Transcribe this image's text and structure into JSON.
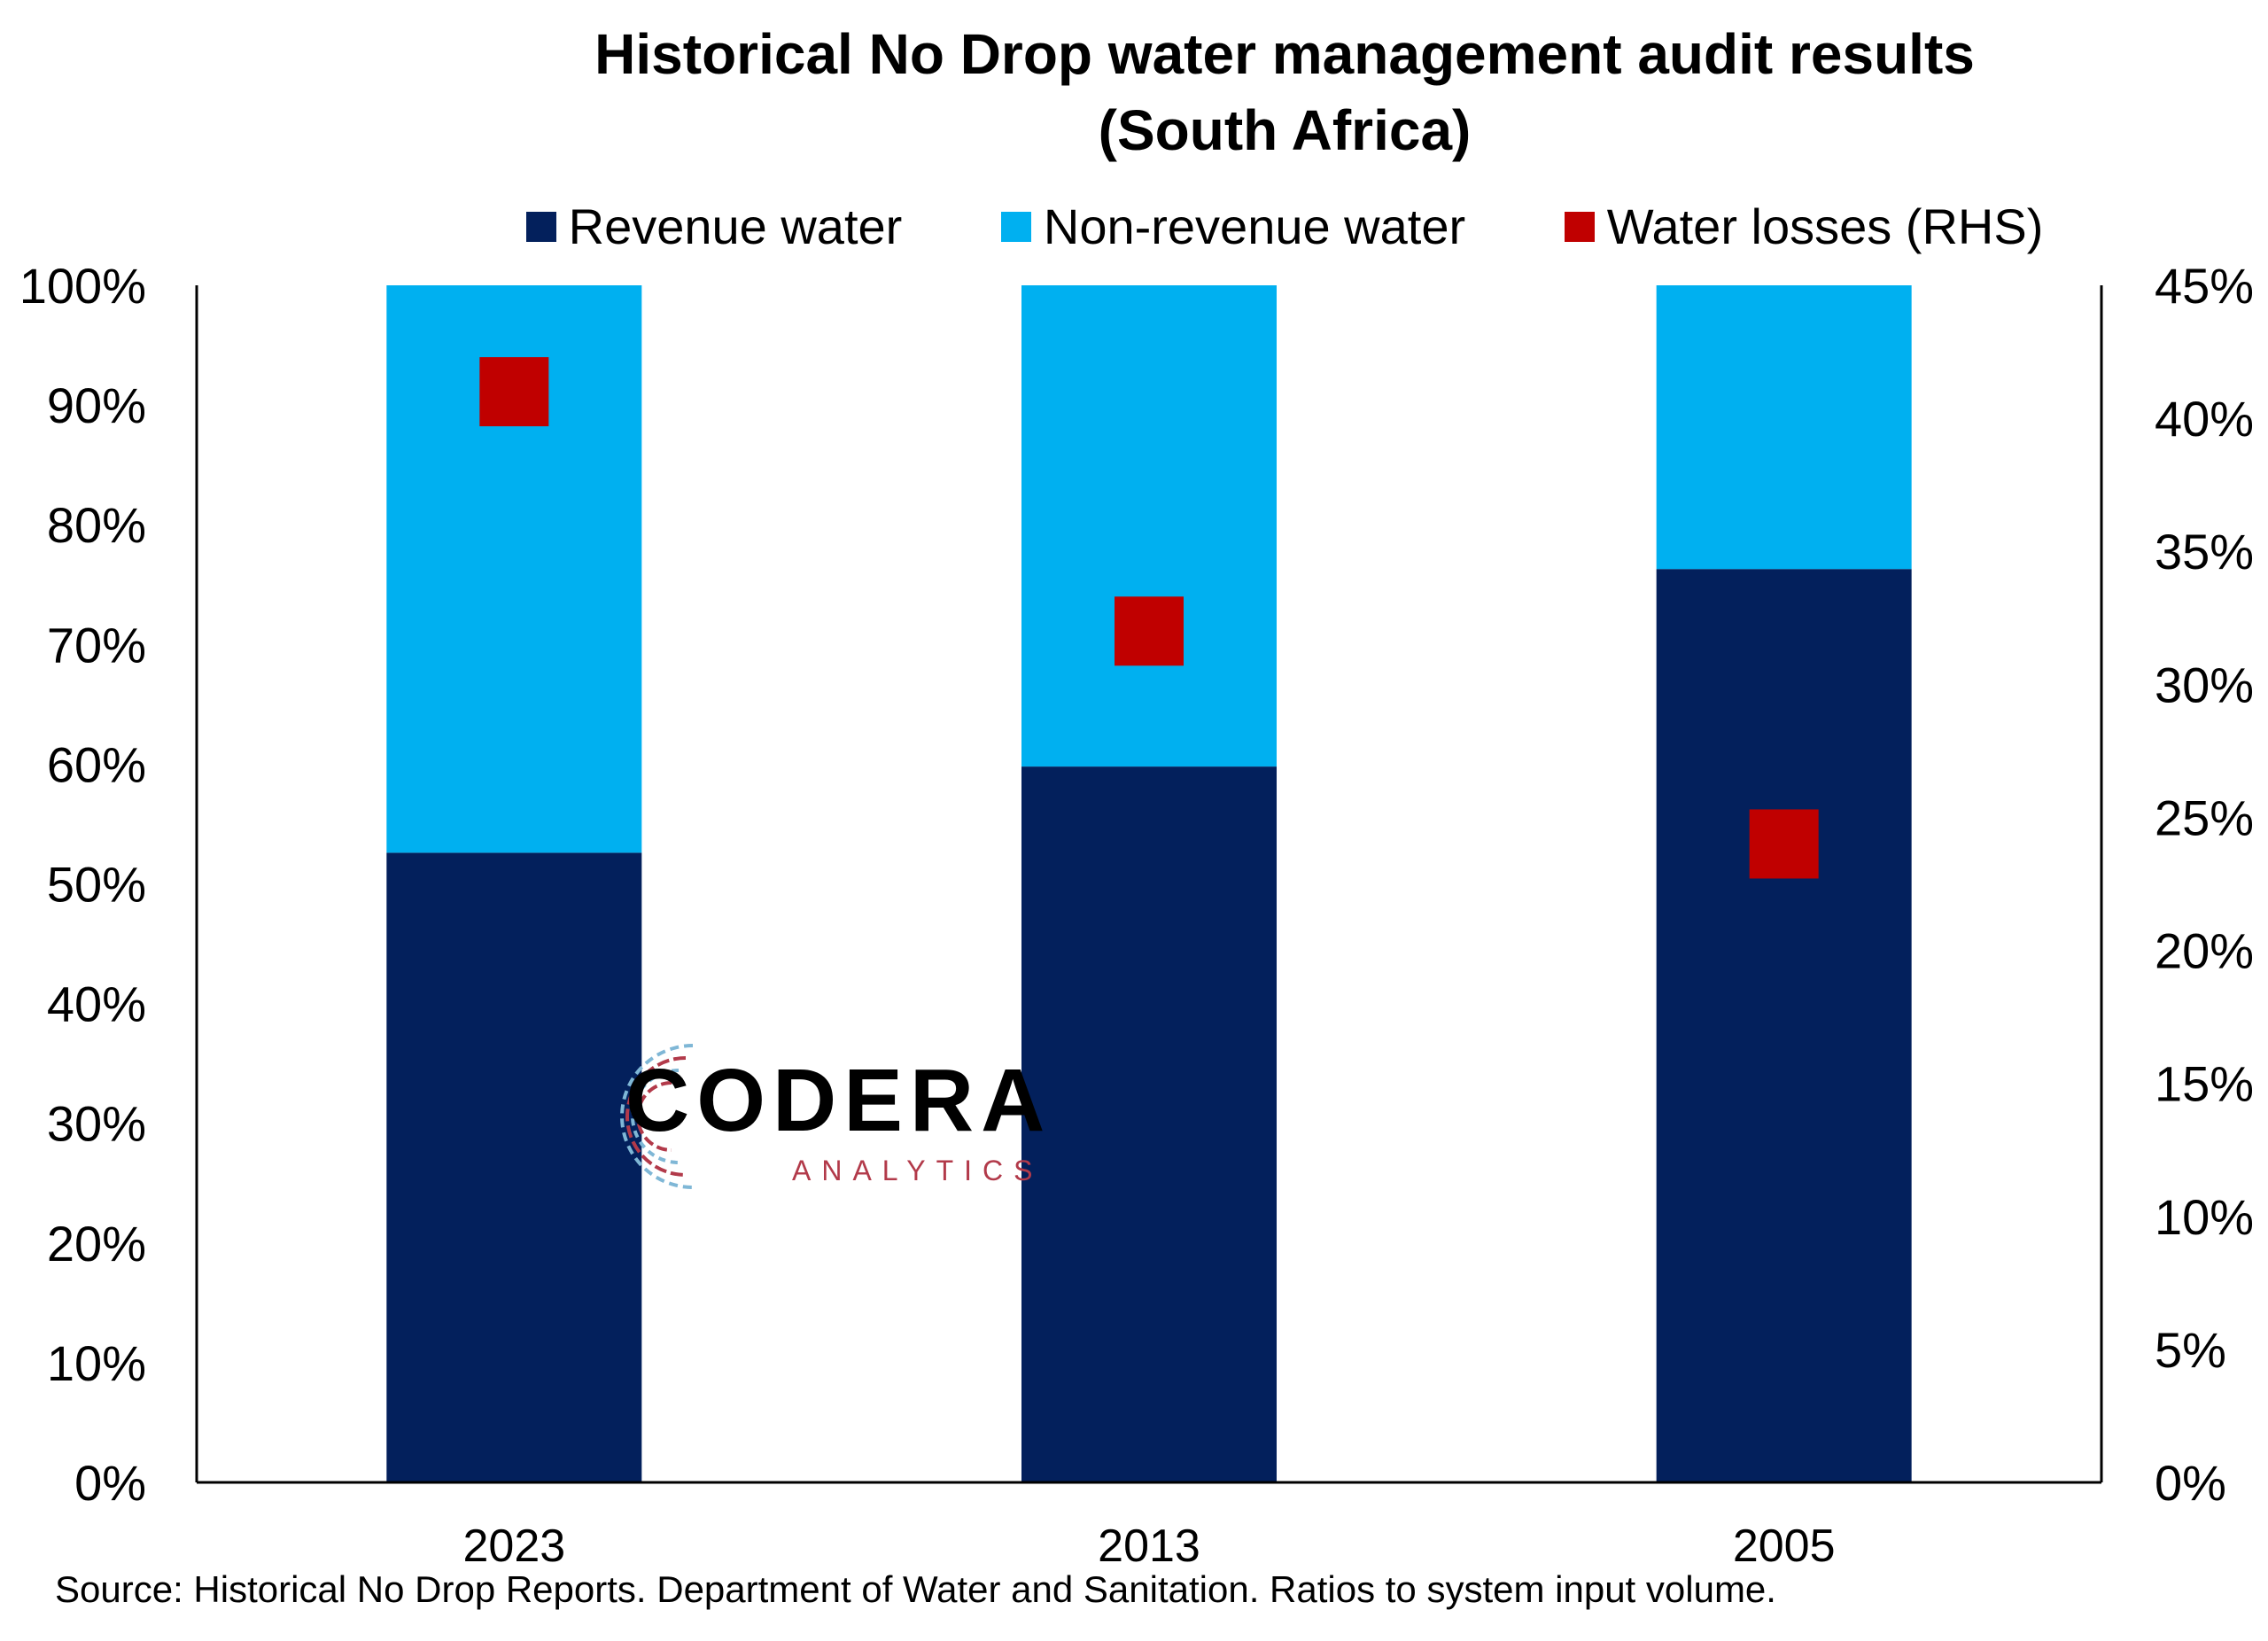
{
  "chart_data": {
    "type": "bar",
    "stacked": true,
    "title_line1": "Historical No Drop water management audit results",
    "title_line2": "(South Africa)",
    "categories": [
      "2023",
      "2013",
      "2005"
    ],
    "series": [
      {
        "name": "Revenue water",
        "color": "#03205c",
        "values": [
          52.6,
          59.8,
          76.3
        ],
        "axis": "left"
      },
      {
        "name": "Non-revenue water",
        "color": "#00b0f0",
        "values": [
          47.4,
          40.2,
          23.7
        ],
        "axis": "left"
      },
      {
        "name": "Water losses (RHS)",
        "color": "#c00000",
        "values": [
          41.0,
          32.0,
          24.0
        ],
        "axis": "right",
        "marker": "square"
      }
    ],
    "y_left": {
      "min": 0,
      "max": 100,
      "step": 10,
      "ticks": [
        "0%",
        "10%",
        "20%",
        "30%",
        "40%",
        "50%",
        "60%",
        "70%",
        "80%",
        "90%",
        "100%"
      ]
    },
    "y_right": {
      "min": 0,
      "max": 45,
      "step": 5,
      "ticks": [
        "0%",
        "5%",
        "10%",
        "15%",
        "20%",
        "25%",
        "30%",
        "35%",
        "40%",
        "45%"
      ]
    },
    "legend_position": "top",
    "grid": false,
    "source": "Source: Historical No Drop Reports. Department of Water and Sanitation. Ratios to system input volume."
  },
  "logo": {
    "name": "CODERA",
    "sub": "ANALYTICS"
  }
}
